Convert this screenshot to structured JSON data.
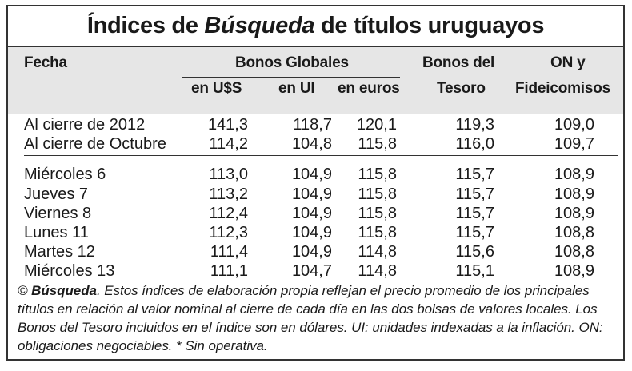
{
  "title": {
    "prefix": "Índices de ",
    "brand": "Búsqueda",
    "suffix": " de títulos uruguayos"
  },
  "headers": {
    "fecha": "Fecha",
    "bonos_globales": "Bonos Globales",
    "usd": "en U$S",
    "ui": "en UI",
    "euros": "en euros",
    "tesoro_1": "Bonos del",
    "tesoro_2": "Tesoro",
    "on_1": "ON y",
    "on_2": "Fideicomisos"
  },
  "rows": [
    {
      "fecha": "Al cierre de 2012",
      "usd": "141,3",
      "ui": "118,7",
      "euros": "120,1",
      "tesoro": "119,3",
      "on": "109,0"
    },
    {
      "fecha": "Al cierre de Octubre",
      "usd": "114,2",
      "ui": "104,8",
      "euros": "115,8",
      "tesoro": "116,0",
      "on": "109,7"
    },
    {
      "fecha": "Miércoles 6",
      "usd": "113,0",
      "ui": "104,9",
      "euros": "115,8",
      "tesoro": "115,7",
      "on": "108,9"
    },
    {
      "fecha": "Jueves 7",
      "usd": "113,2",
      "ui": "104,9",
      "euros": "115,8",
      "tesoro": "115,7",
      "on": "108,9"
    },
    {
      "fecha": "Viernes 8",
      "usd": "112,4",
      "ui": "104,9",
      "euros": "115,8",
      "tesoro": "115,7",
      "on": "108,9"
    },
    {
      "fecha": "Lunes 11",
      "usd": "112,3",
      "ui": "104,9",
      "euros": "115,8",
      "tesoro": "115,7",
      "on": "108,8"
    },
    {
      "fecha": "Martes 12",
      "usd": "111,4",
      "ui": "104,9",
      "euros": "114,8",
      "tesoro": "115,6",
      "on": "108,8"
    },
    {
      "fecha": "Miércoles 13",
      "usd": "111,1",
      "ui": "104,7",
      "euros": "114,8",
      "tesoro": "115,1",
      "on": "108,9"
    }
  ],
  "footnote": {
    "copyright": "© ",
    "brand": "Búsqueda",
    "text": ". Estos índices de elaboración propia reflejan el precio promedio de los principales títulos en relación al valor nominal al cierre de cada día en las dos bolsas de valores locales. Los Bonos del Tesoro incluidos en el índice son en dólares. UI: unidades indexadas a la inflación. ON: obligaciones negociables. * Sin operativa."
  }
}
